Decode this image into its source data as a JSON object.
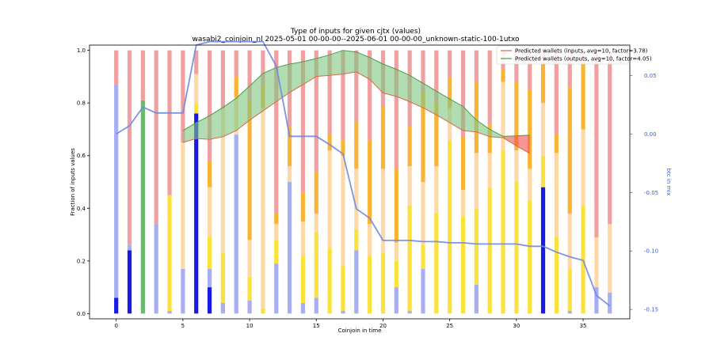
{
  "chart_data": {
    "type": "bar",
    "title": "Type of inputs for given cjtx (values)",
    "subtitle": "wasabi2_coinjoin_nl 2025-05-01 00-00-00--2025-06-01 00-00-00_unknown-static-100-1utxo",
    "xlabel": "Coinjoin in time",
    "ylabel": "Fraction of inputs values",
    "y2label": "btc in mix",
    "xlim": [
      -2,
      38.5
    ],
    "ylim": [
      -0.02,
      1.02
    ],
    "y2lim": [
      -0.158,
      0.076
    ],
    "xticks": [
      "0",
      "5",
      "10",
      "15",
      "20",
      "25",
      "30",
      "35"
    ],
    "yticks": [
      "0.0",
      "0.2",
      "0.4",
      "0.6",
      "0.8",
      "1.0"
    ],
    "y2ticks": [
      "-0.15",
      "-0.10",
      "-0.05",
      "0.00",
      "0.05"
    ],
    "stack_categories": [
      "blue",
      "lightblue",
      "yellow",
      "peach",
      "orange",
      "green",
      "salmon"
    ],
    "colors": {
      "blue": "#1a1ae6",
      "lightblue": "#a8aef2",
      "yellow": "#fbe13c",
      "peach": "#fdd9a8",
      "orange": "#f9b435",
      "green": "#6db86d",
      "salmon": "#f0a0a0",
      "brown": "#c48a6a",
      "line": "#6f8ae0",
      "fill_green": "#7fc47f",
      "fill_red": "#f05050",
      "line_inputs": "#d46a4a",
      "line_outputs": "#4a9a4a"
    },
    "bars": [
      {
        "x": 0,
        "segments": [
          0.06,
          0.81,
          0,
          0,
          0,
          0,
          0.13
        ]
      },
      {
        "x": 1,
        "segments": [
          0.24,
          0.02,
          0,
          0,
          0,
          0,
          0.74
        ]
      },
      {
        "x": 2,
        "segments": [
          0,
          0,
          0,
          0,
          0,
          0.81,
          0.19
        ]
      },
      {
        "x": 3,
        "segments": [
          0,
          0.34,
          0,
          0,
          0,
          0,
          0.66
        ]
      },
      {
        "x": 4,
        "segments": [
          0,
          0.01,
          0.44,
          0,
          0,
          0,
          0.55
        ]
      },
      {
        "x": 5,
        "segments": [
          0,
          0.17,
          0,
          0.48,
          0,
          0,
          0.35
        ]
      },
      {
        "x": 6,
        "segments": [
          0.76,
          0,
          0.04,
          0.11,
          0,
          0,
          0.09
        ]
      },
      {
        "x": 7,
        "segments": [
          0.1,
          0.07,
          0.12,
          0.19,
          0.1,
          0,
          0.42
        ]
      },
      {
        "x": 8,
        "segments": [
          0,
          0.04,
          0.19,
          0.55,
          0,
          0,
          0.22
        ]
      },
      {
        "x": 9,
        "segments": [
          0,
          0.68,
          0,
          0.14,
          0.08,
          0,
          0.1
        ]
      },
      {
        "x": 10,
        "segments": [
          0,
          0.05,
          0.09,
          0.14,
          0.53,
          0,
          0.19
        ]
      },
      {
        "x": 11,
        "segments": [
          0,
          0,
          0.02,
          0.76,
          0.09,
          0,
          0.13
        ]
      },
      {
        "x": 12,
        "segments": [
          0,
          0.19,
          0.09,
          0.06,
          0.04,
          0,
          0.62
        ]
      },
      {
        "x": 13,
        "segments": [
          0,
          0.5,
          0,
          0.06,
          0.15,
          0,
          0.29
        ]
      },
      {
        "x": 14,
        "segments": [
          0,
          0.04,
          0.18,
          0.13,
          0.11,
          0,
          0.54
        ]
      },
      {
        "x": 15,
        "segments": [
          0,
          0.06,
          0.25,
          0.07,
          0.16,
          0,
          0.46
        ]
      },
      {
        "x": 16,
        "segments": [
          0,
          0,
          0.25,
          0.37,
          0.06,
          0,
          0.32
        ]
      },
      {
        "x": 17,
        "segments": [
          0,
          0.01,
          0.17,
          0.42,
          0.06,
          0,
          0.34
        ]
      },
      {
        "x": 18,
        "segments": [
          0,
          0.24,
          0.08,
          0.23,
          0.18,
          0,
          0.27
        ]
      },
      {
        "x": 19,
        "segments": [
          0,
          0,
          0.22,
          0.12,
          0.32,
          0,
          0.34
        ]
      },
      {
        "x": 20,
        "segments": [
          0,
          0,
          0.23,
          0.32,
          0.24,
          0,
          0.21
        ]
      },
      {
        "x": 21,
        "segments": [
          0,
          0.1,
          0.1,
          0.07,
          0.28,
          0,
          0.45
        ]
      },
      {
        "x": 22,
        "segments": [
          0,
          0.01,
          0.4,
          0.15,
          0.15,
          0,
          0.29
        ]
      },
      {
        "x": 23,
        "segments": [
          0,
          0.17,
          0.09,
          0.24,
          0.34,
          0,
          0.16
        ]
      },
      {
        "x": 24,
        "segments": [
          0,
          0,
          0.38,
          0.18,
          0.24,
          0,
          0.2
        ]
      },
      {
        "x": 25,
        "segments": [
          0,
          0,
          0.66,
          0.12,
          0.12,
          0,
          0.1
        ]
      },
      {
        "x": 26,
        "segments": [
          0,
          0,
          0.37,
          0.1,
          0.2,
          0,
          0.33
        ]
      },
      {
        "x": 27,
        "segments": [
          0,
          0.11,
          0.29,
          0.21,
          0.27,
          0,
          0.12
        ]
      },
      {
        "x": 28,
        "segments": [
          0,
          0,
          0.48,
          0.13,
          0.11,
          0,
          0.28
        ]
      },
      {
        "x": 29,
        "segments": [
          0,
          0,
          0.62,
          0.26,
          0.05,
          0,
          0.07
        ]
      },
      {
        "x": 30,
        "segments": [
          0,
          0,
          0.5,
          0.12,
          0.26,
          0,
          0.12
        ]
      },
      {
        "x": 31,
        "segments": [
          0,
          0,
          0.43,
          0.12,
          0.3,
          0,
          0.15
        ]
      },
      {
        "x": 32,
        "segments": [
          0.48,
          0,
          0.12,
          0.2,
          0.15,
          0,
          0.05
        ]
      },
      {
        "x": 33,
        "segments": [
          0,
          0,
          0.29,
          0.32,
          0.07,
          0,
          0.32
        ]
      },
      {
        "x": 34,
        "segments": [
          0,
          0.01,
          0.16,
          0.21,
          0.48,
          0,
          0.14
        ]
      },
      {
        "x": 35,
        "segments": [
          0,
          0,
          0.41,
          0.29,
          0.25,
          0,
          0.05
        ]
      },
      {
        "x": 36,
        "segments": [
          0,
          0.1,
          0,
          0.19,
          0,
          0,
          0.71
        ]
      },
      {
        "x": 37,
        "segments": [
          0,
          0.08,
          0,
          0.26,
          0,
          0,
          0.66
        ]
      }
    ],
    "btc_in_mix": {
      "x": [
        0,
        1,
        2,
        3,
        4,
        5,
        6,
        7,
        8,
        9,
        10,
        11,
        12,
        13,
        14,
        15,
        16,
        17,
        18,
        19,
        20,
        21,
        22,
        23,
        24,
        25,
        26,
        27,
        28,
        29,
        30,
        31,
        32,
        33,
        34,
        35,
        36,
        37
      ],
      "y": [
        0.0,
        0.007,
        0.023,
        0.018,
        0.018,
        0.018,
        0.076,
        0.079,
        0.079,
        0.079,
        0.079,
        0.079,
        0.058,
        -0.002,
        -0.002,
        -0.002,
        -0.009,
        -0.017,
        -0.064,
        -0.072,
        -0.091,
        -0.091,
        -0.091,
        -0.092,
        -0.092,
        -0.093,
        -0.093,
        -0.094,
        -0.094,
        -0.094,
        -0.094,
        -0.096,
        -0.096,
        -0.101,
        -0.105,
        -0.108,
        -0.138,
        -0.147
      ]
    },
    "predicted_inputs": {
      "name": "Predicted wallets (inputs, avg=10, factor=3.78)",
      "x": [
        5,
        6,
        7,
        8,
        9,
        10,
        11,
        12,
        13,
        14,
        15,
        16,
        17,
        18,
        19,
        20,
        21,
        22,
        23,
        24,
        25,
        26,
        27,
        28,
        29,
        30,
        31
      ],
      "y": [
        0.65,
        0.665,
        0.662,
        0.672,
        0.695,
        0.735,
        0.77,
        0.805,
        0.84,
        0.87,
        0.901,
        0.905,
        0.91,
        0.918,
        0.89,
        0.838,
        0.825,
        0.805,
        0.782,
        0.755,
        0.725,
        0.695,
        0.69,
        0.672,
        0.668,
        0.637,
        0.608
      ]
    },
    "predicted_outputs": {
      "name": "Predicted wallets (outputs, avg=10, factor=4.05)",
      "x": [
        5,
        6,
        7,
        8,
        9,
        10,
        11,
        12,
        13,
        14,
        15,
        16,
        17,
        18,
        19,
        20,
        21,
        22,
        23,
        24,
        25,
        26,
        27,
        28,
        29,
        30,
        31
      ],
      "y": [
        0.695,
        0.725,
        0.752,
        0.783,
        0.818,
        0.865,
        0.912,
        0.935,
        0.948,
        0.957,
        0.969,
        0.983,
        1.0,
        0.994,
        0.973,
        0.948,
        0.928,
        0.905,
        0.875,
        0.845,
        0.815,
        0.787,
        0.735,
        0.7,
        0.673,
        0.675,
        0.678
      ]
    },
    "legend": {
      "placement": "top-right"
    },
    "grid": false
  }
}
